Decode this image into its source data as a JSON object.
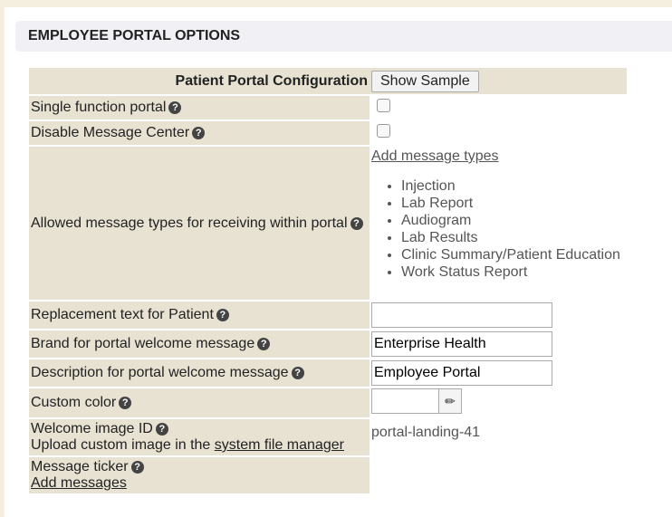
{
  "section_title": "EMPLOYEE PORTAL OPTIONS",
  "config": {
    "title": "Patient Portal Configuration",
    "show_sample": "Show Sample"
  },
  "rows": {
    "single_function": "Single function portal",
    "disable_message_center": "Disable Message Center",
    "allowed_types": "Allowed message types for receiving within portal",
    "add_message_types": "Add message types",
    "message_types": [
      "Injection",
      "Lab Report",
      "Audiogram",
      "Lab Results",
      "Clinic Summary/Patient Education",
      "Work Status Report"
    ],
    "replacement_text": "Replacement text for Patient",
    "replacement_value": "",
    "brand": "Brand for portal welcome message",
    "brand_value": "Enterprise Health",
    "description": "Description for portal welcome message",
    "description_value": "Employee Portal",
    "custom_color": "Custom color",
    "welcome_image": "Welcome image ID",
    "upload_prefix": "Upload custom image in the ",
    "upload_link": "system file manager",
    "welcome_image_value": "portal-landing-41",
    "ticker": "Message ticker",
    "add_messages": "Add messages"
  },
  "icons": {
    "help": "question-circle-icon",
    "picker": "eyedropper-icon"
  }
}
